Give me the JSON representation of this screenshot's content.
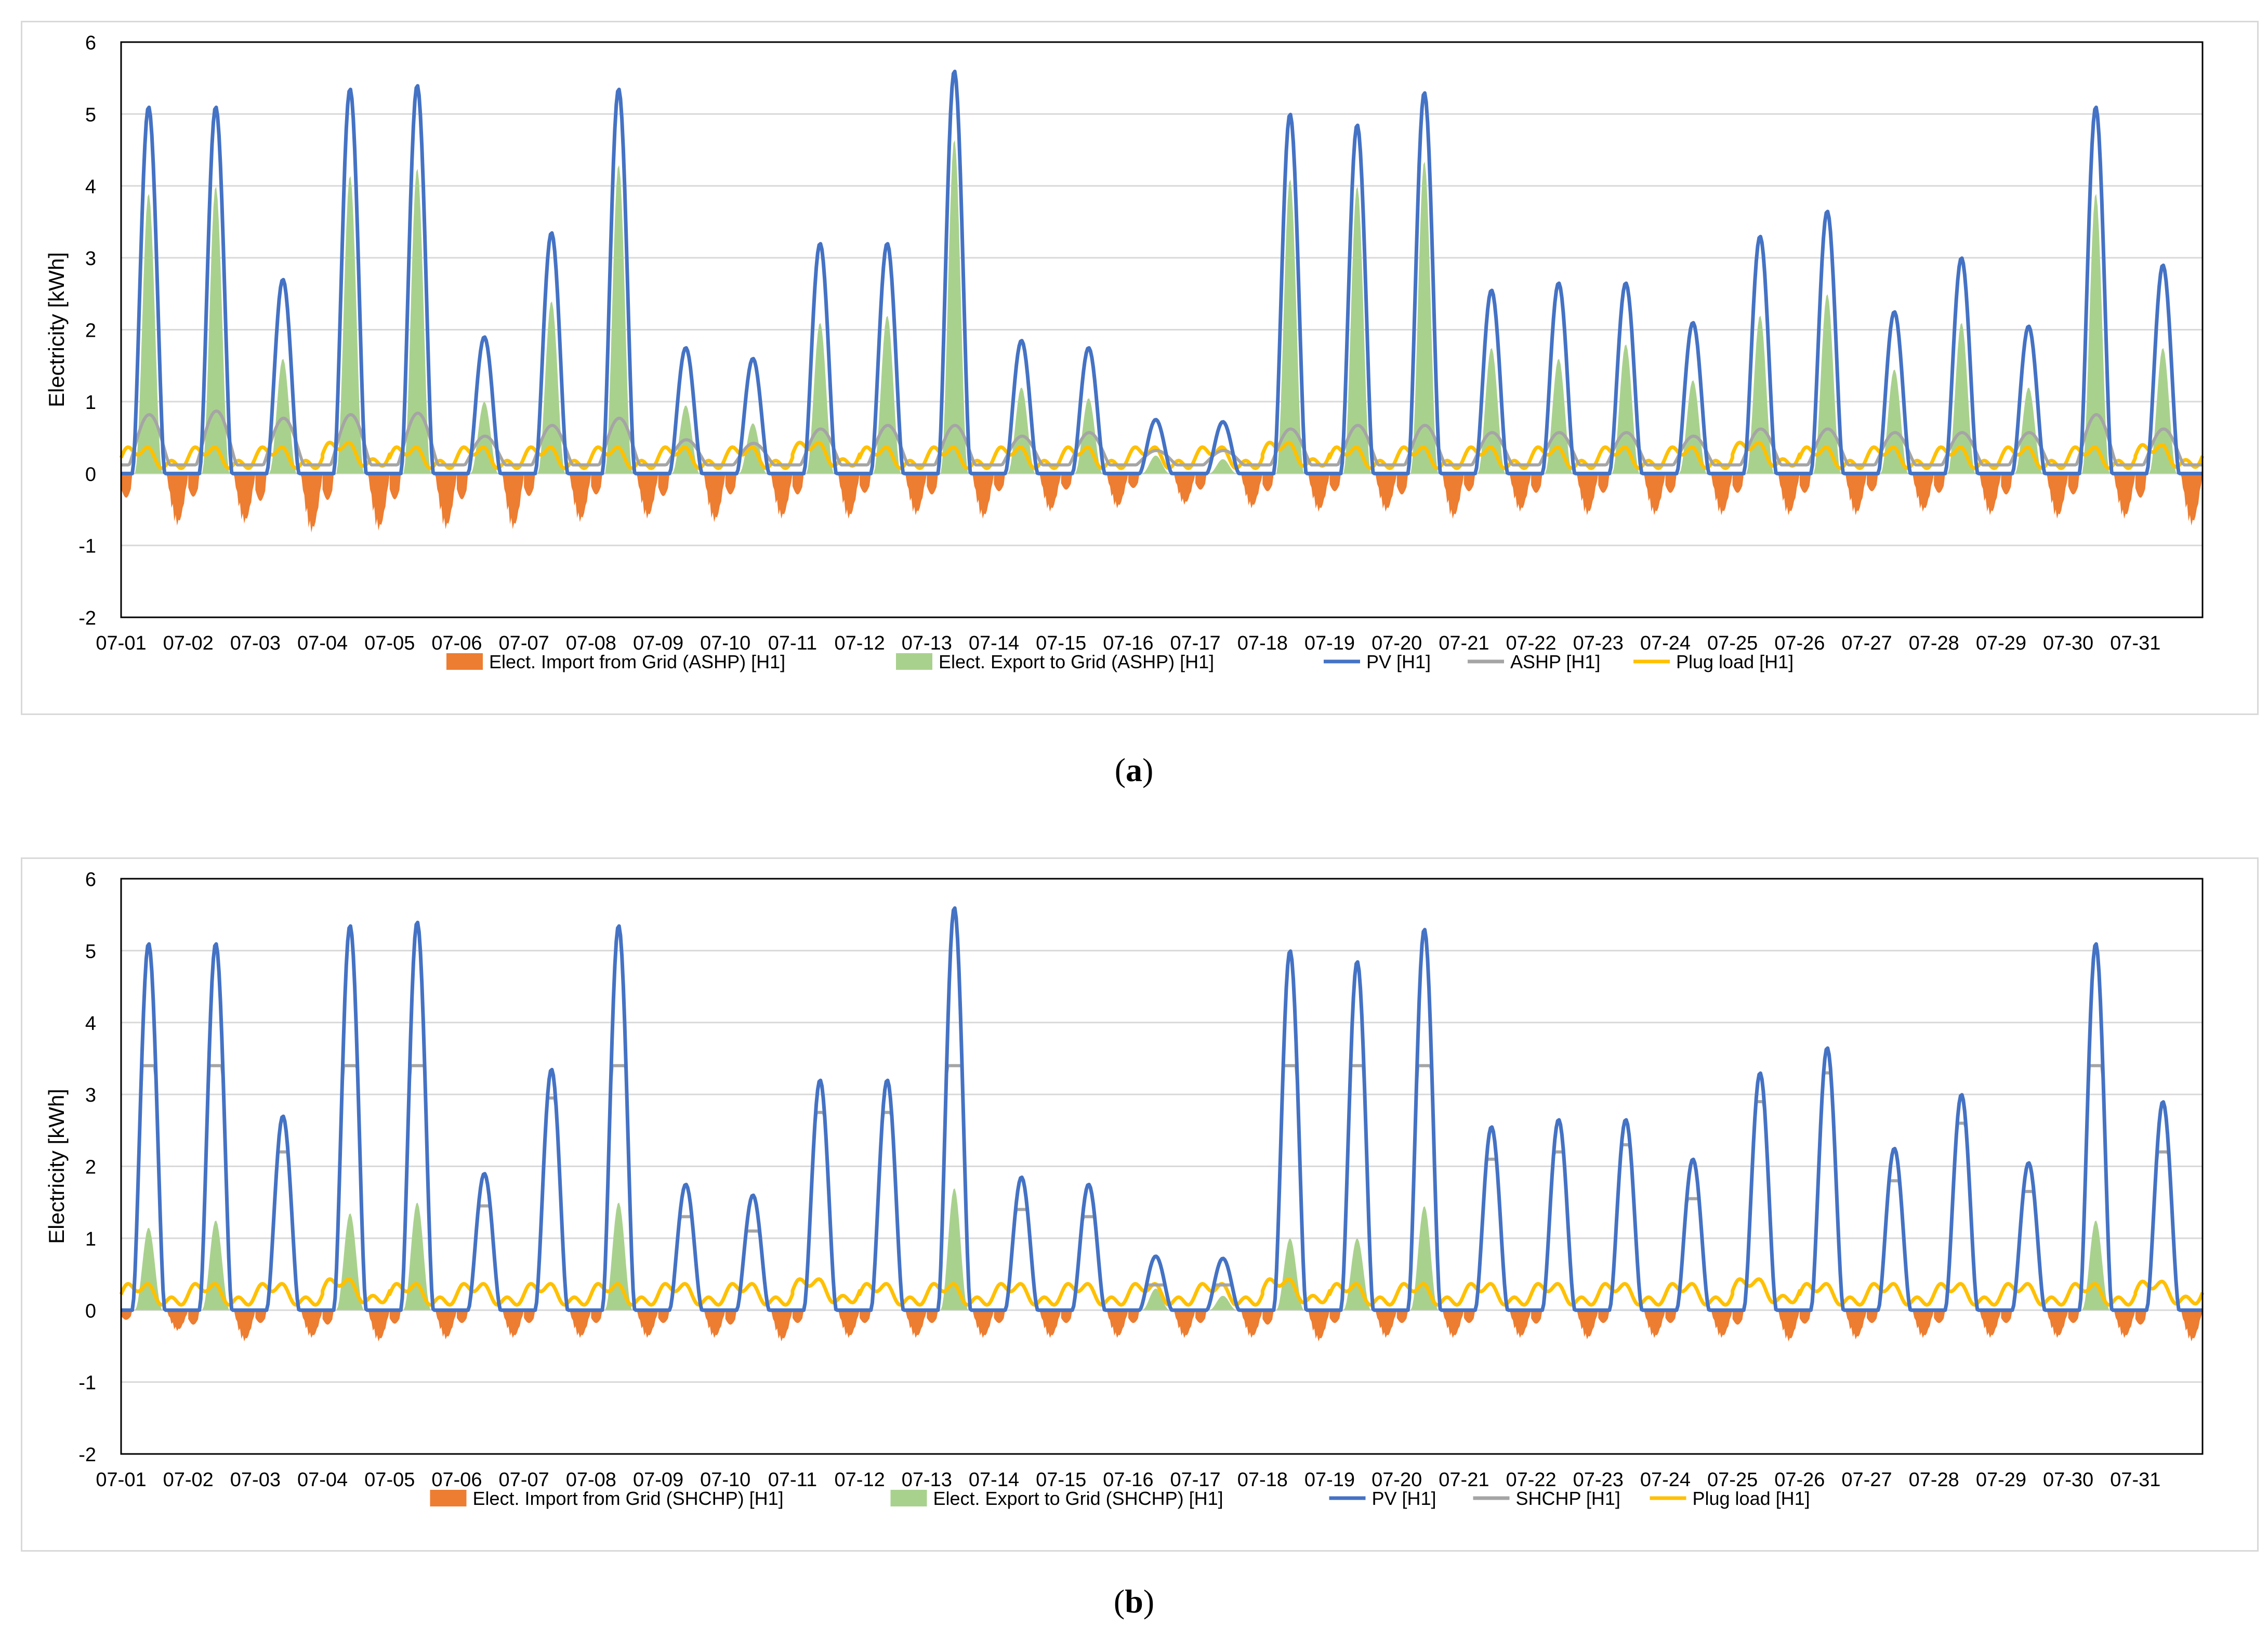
{
  "figure": {
    "label_a": "a",
    "label_b": "b"
  },
  "colors": {
    "import": "#ED7D31",
    "export": "#A9D18E",
    "pv": "#4472C4",
    "hp": "#A5A5A5",
    "plug": "#FFC000",
    "grid": "#d9d9d9"
  },
  "chart_data": [
    {
      "type": "area",
      "panel": "a",
      "ylabel": "Electricity [kWh]",
      "ylim": [
        -2,
        6
      ],
      "yticks": [
        -2,
        -1,
        0,
        1,
        2,
        3,
        4,
        5,
        6
      ],
      "categories": [
        "07-01",
        "07-02",
        "07-03",
        "07-04",
        "07-05",
        "07-06",
        "07-07",
        "07-08",
        "07-09",
        "07-10",
        "07-11",
        "07-12",
        "07-13",
        "07-14",
        "07-15",
        "07-16",
        "07-17",
        "07-18",
        "07-19",
        "07-20",
        "07-21",
        "07-22",
        "07-23",
        "07-24",
        "07-25",
        "07-26",
        "07-27",
        "07-28",
        "07-29",
        "07-30",
        "07-31"
      ],
      "legend": [
        "Elect. Import from Grid (ASHP) [H1]",
        "Elect. Export to Grid (ASHP) [H1]",
        "PV [H1]",
        "ASHP [H1]",
        "Plug load [H1]"
      ],
      "series_daily": {
        "pv_peak": [
          5.1,
          5.1,
          2.7,
          5.35,
          5.4,
          1.9,
          3.35,
          5.35,
          1.75,
          1.6,
          3.2,
          3.2,
          5.6,
          1.85,
          1.75,
          0.75,
          0.72,
          5.0,
          4.85,
          5.3,
          2.55,
          2.65,
          2.65,
          2.1,
          3.3,
          3.65,
          2.25,
          3.0,
          2.05,
          5.1,
          2.9
        ],
        "export_peak": [
          3.9,
          4.0,
          1.6,
          4.15,
          4.25,
          1.0,
          2.4,
          4.3,
          0.95,
          0.7,
          2.1,
          2.2,
          4.65,
          1.2,
          1.05,
          0.25,
          0.2,
          4.1,
          4.0,
          4.35,
          1.75,
          1.6,
          1.8,
          1.3,
          2.2,
          2.5,
          1.45,
          2.1,
          1.2,
          3.9,
          1.75
        ],
        "hp_peak": [
          0.7,
          0.75,
          0.65,
          0.7,
          0.72,
          0.4,
          0.55,
          0.65,
          0.35,
          0.3,
          0.5,
          0.55,
          0.55,
          0.4,
          0.45,
          0.2,
          0.2,
          0.5,
          0.55,
          0.55,
          0.45,
          0.45,
          0.45,
          0.4,
          0.5,
          0.5,
          0.45,
          0.45,
          0.45,
          0.7,
          0.5
        ],
        "import_min": [
          -0.75,
          -0.72,
          -0.85,
          -0.82,
          -0.8,
          -0.8,
          -0.7,
          -0.65,
          -0.7,
          -0.65,
          -0.65,
          -0.6,
          -0.65,
          -0.55,
          -0.5,
          -0.45,
          -0.5,
          -0.55,
          -0.55,
          -0.65,
          -0.55,
          -0.6,
          -0.6,
          -0.6,
          -0.6,
          -0.6,
          -0.55,
          -0.6,
          -0.65,
          -0.65,
          -0.75
        ],
        "plug_peak": [
          0.45,
          0.45,
          0.45,
          0.55,
          0.45,
          0.45,
          0.45,
          0.45,
          0.45,
          0.45,
          0.55,
          0.45,
          0.45,
          0.45,
          0.45,
          0.45,
          0.45,
          0.55,
          0.45,
          0.45,
          0.45,
          0.45,
          0.45,
          0.45,
          0.55,
          0.45,
          0.45,
          0.45,
          0.45,
          0.45,
          0.5
        ]
      }
    },
    {
      "type": "area",
      "panel": "b",
      "ylabel": "Electricity [kWh]",
      "ylim": [
        -2,
        6
      ],
      "yticks": [
        -2,
        -1,
        0,
        1,
        2,
        3,
        4,
        5,
        6
      ],
      "categories": [
        "07-01",
        "07-02",
        "07-03",
        "07-04",
        "07-05",
        "07-06",
        "07-07",
        "07-08",
        "07-09",
        "07-10",
        "07-11",
        "07-12",
        "07-13",
        "07-14",
        "07-15",
        "07-16",
        "07-17",
        "07-18",
        "07-19",
        "07-20",
        "07-21",
        "07-22",
        "07-23",
        "07-24",
        "07-25",
        "07-26",
        "07-27",
        "07-28",
        "07-29",
        "07-30",
        "07-31"
      ],
      "legend": [
        "Elect. Import from Grid (SHCHP) [H1]",
        "Elect. Export to Grid (SHCHP) [H1]",
        "PV [H1]",
        "SHCHP [H1]",
        "Plug load [H1]"
      ],
      "series_daily": {
        "pv_peak": [
          5.1,
          5.1,
          2.7,
          5.35,
          5.4,
          1.9,
          3.35,
          5.35,
          1.75,
          1.6,
          3.2,
          3.2,
          5.6,
          1.85,
          1.75,
          0.75,
          0.72,
          5.0,
          4.85,
          5.3,
          2.55,
          2.65,
          2.65,
          2.1,
          3.3,
          3.65,
          2.25,
          3.0,
          2.05,
          5.1,
          2.9
        ],
        "export_peak": [
          1.15,
          1.25,
          0.0,
          1.35,
          1.5,
          0.0,
          0.0,
          1.5,
          0.0,
          0.0,
          0.0,
          0.0,
          1.7,
          0.0,
          0.0,
          0.3,
          0.2,
          1.0,
          1.0,
          1.45,
          0.0,
          0.0,
          0.0,
          0.0,
          0.0,
          0.0,
          0.0,
          0.0,
          0.0,
          1.25,
          0.0
        ],
        "hp_peak": [
          3.4,
          3.4,
          2.2,
          3.4,
          3.4,
          1.45,
          2.95,
          3.4,
          1.3,
          1.1,
          2.75,
          2.75,
          3.4,
          1.4,
          1.3,
          0.35,
          0.35,
          3.4,
          3.4,
          3.4,
          2.1,
          2.2,
          2.3,
          1.55,
          2.9,
          3.3,
          1.8,
          2.6,
          1.65,
          3.4,
          2.2
        ],
        "import_min": [
          -0.3,
          -0.45,
          -0.4,
          -0.45,
          -0.42,
          -0.4,
          -0.4,
          -0.4,
          -0.4,
          -0.45,
          -0.4,
          -0.4,
          -0.4,
          -0.4,
          -0.4,
          -0.4,
          -0.4,
          -0.45,
          -0.4,
          -0.4,
          -0.4,
          -0.42,
          -0.4,
          -0.4,
          -0.45,
          -0.42,
          -0.4,
          -0.4,
          -0.4,
          -0.4,
          -0.45
        ],
        "plug_peak": [
          0.45,
          0.45,
          0.45,
          0.55,
          0.45,
          0.45,
          0.45,
          0.45,
          0.45,
          0.45,
          0.55,
          0.45,
          0.45,
          0.45,
          0.45,
          0.45,
          0.45,
          0.55,
          0.45,
          0.45,
          0.45,
          0.45,
          0.45,
          0.45,
          0.55,
          0.45,
          0.45,
          0.45,
          0.45,
          0.45,
          0.5
        ]
      }
    }
  ]
}
